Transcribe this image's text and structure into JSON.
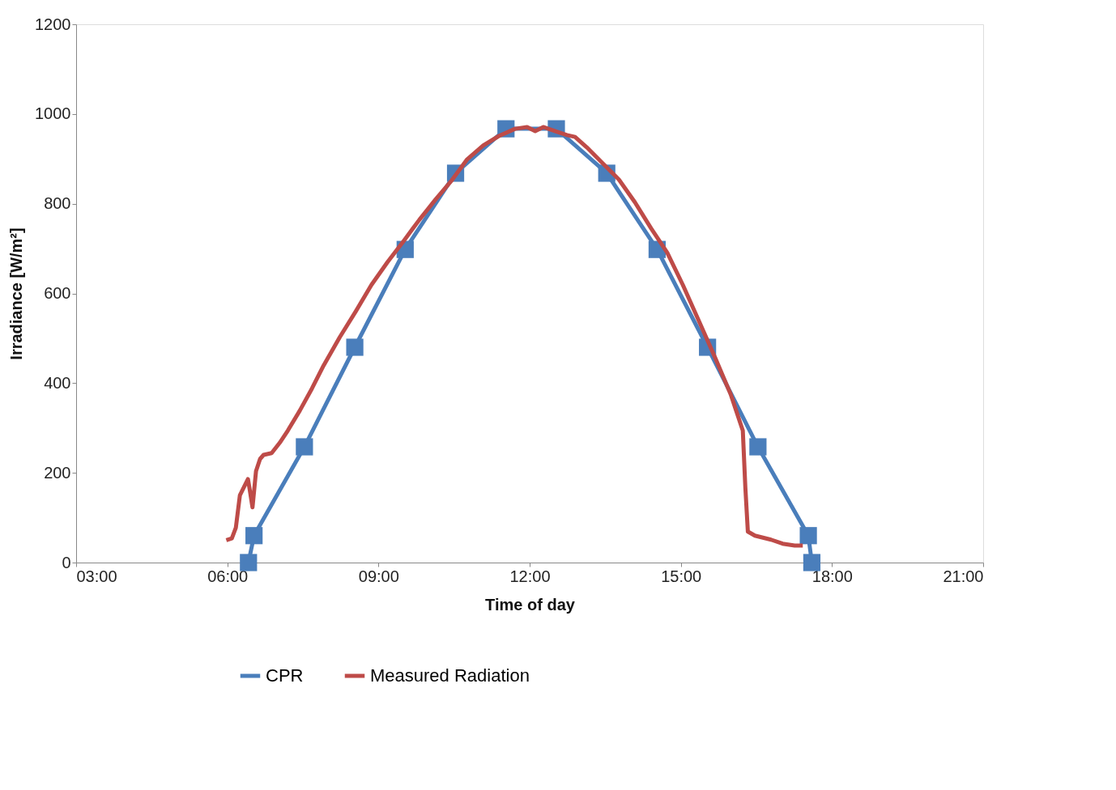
{
  "chart_data": {
    "type": "line",
    "xlabel": "Time of day",
    "ylabel": "Irradiance [W/m²]",
    "xlim": [
      3,
      21
    ],
    "xticks": [
      {
        "value": 3,
        "label": "03:00"
      },
      {
        "value": 6,
        "label": "06:00"
      },
      {
        "value": 9,
        "label": "09:00"
      },
      {
        "value": 12,
        "label": "12:00"
      },
      {
        "value": 15,
        "label": "15:00"
      },
      {
        "value": 18,
        "label": "18:00"
      },
      {
        "value": 21,
        "label": "21:00"
      }
    ],
    "ylim": [
      0,
      1200
    ],
    "yticks": [
      0,
      200,
      400,
      600,
      800,
      1000,
      1200
    ],
    "grid": false,
    "legend": "bottom",
    "series": [
      {
        "name": "CPR",
        "color": "#4a7ebb",
        "marker": "square",
        "x": [
          6.42,
          6.53,
          7.53,
          8.53,
          9.53,
          10.53,
          11.53,
          12.53,
          13.53,
          14.53,
          15.53,
          16.53,
          17.53,
          17.6
        ],
        "values": [
          0,
          60,
          258,
          480,
          698,
          868,
          967,
          967,
          868,
          698,
          480,
          258,
          60,
          0
        ]
      },
      {
        "name": "Measured Radiation",
        "color": "#be4b48",
        "marker": "none",
        "x": [
          5.98,
          6.09,
          6.17,
          6.25,
          6.33,
          6.41,
          6.45,
          6.5,
          6.57,
          6.65,
          6.72,
          6.88,
          7.04,
          7.2,
          7.44,
          7.68,
          7.91,
          8.23,
          8.55,
          8.86,
          9.18,
          9.5,
          9.81,
          10.13,
          10.44,
          10.76,
          11.08,
          11.39,
          11.71,
          11.95,
          12.11,
          12.27,
          12.5,
          12.74,
          12.9,
          13.13,
          13.45,
          13.77,
          14.09,
          14.41,
          14.73,
          15.04,
          15.36,
          15.68,
          15.99,
          16.23,
          16.28,
          16.33,
          16.47,
          16.79,
          17.02,
          17.26,
          17.42
        ],
        "values": [
          50,
          54,
          78,
          150,
          168,
          186,
          159,
          123,
          204,
          231,
          240,
          244,
          267,
          294,
          339,
          388,
          439,
          502,
          560,
          619,
          670,
          717,
          764,
          809,
          850,
          899,
          930,
          951,
          967,
          971,
          962,
          971,
          962,
          953,
          949,
          926,
          890,
          854,
          803,
          745,
          691,
          619,
          538,
          457,
          375,
          294,
          168,
          69,
          60,
          51,
          42,
          38,
          38
        ]
      }
    ]
  }
}
